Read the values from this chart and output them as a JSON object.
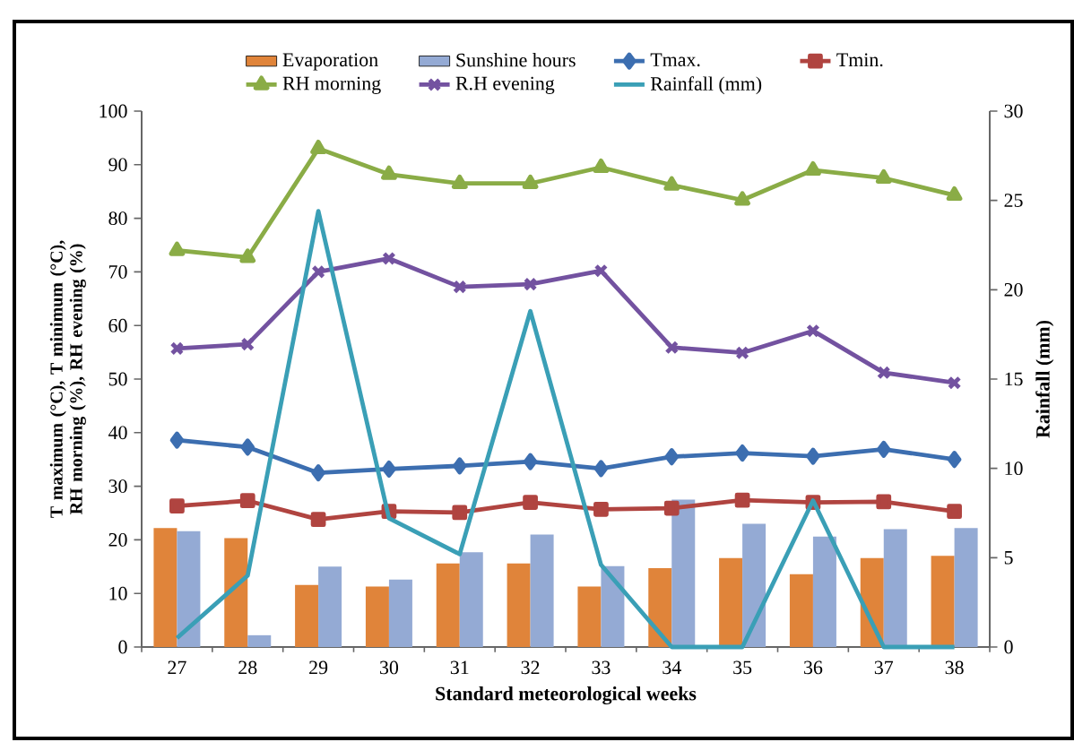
{
  "chart_data": {
    "type": "bar",
    "xlabel": "Standard meteorological weeks",
    "ylabel": "T maximum (°C), T minimum (°C), RH morning (%), RH evening (%)",
    "y2label": "Rainfall (mm)",
    "categories": [
      "27",
      "28",
      "29",
      "30",
      "31",
      "32",
      "33",
      "34",
      "35",
      "36",
      "37",
      "38"
    ],
    "series": [
      {
        "name": "Evaporation",
        "color": "#e0843a",
        "values": [
          22.2,
          20.3,
          11.6,
          11.3,
          15.6,
          15.6,
          11.3,
          14.7,
          16.6,
          13.6,
          16.6,
          17.0
        ]
      },
      {
        "name": "Sunshine hours",
        "color": "#94aad4",
        "values": [
          21.6,
          2.2,
          15.0,
          12.6,
          17.7,
          21.0,
          15.1,
          27.5,
          23.0,
          20.6,
          22.0,
          22.2
        ]
      },
      {
        "name": "Tmax.",
        "type": "line",
        "marker": "diamond",
        "color": "#3c6eb0",
        "values": [
          38.6,
          37.3,
          32.5,
          33.2,
          33.8,
          34.6,
          33.3,
          35.5,
          36.2,
          35.6,
          36.9,
          35.0
        ]
      },
      {
        "name": "Tmin.",
        "type": "line",
        "marker": "square",
        "color": "#b04440",
        "values": [
          26.3,
          27.3,
          23.8,
          25.3,
          25.1,
          27.0,
          25.7,
          25.9,
          27.4,
          27.0,
          27.1,
          25.3
        ]
      },
      {
        "name": "RH morning",
        "type": "line",
        "marker": "triangle",
        "color": "#8aac46",
        "values": [
          74.0,
          72.7,
          93.0,
          88.2,
          86.5,
          86.5,
          89.5,
          86.2,
          83.4,
          89.0,
          87.5,
          84.3
        ]
      },
      {
        "name": "R.H evening",
        "type": "line",
        "marker": "cross",
        "color": "#7352a0",
        "values": [
          55.7,
          56.5,
          70.0,
          72.5,
          67.2,
          67.7,
          70.2,
          55.9,
          54.9,
          59.0,
          51.2,
          49.3
        ]
      },
      {
        "name": "Rainfall (mm)",
        "type": "line",
        "marker": "none",
        "axis": "y2",
        "color": "#3a9fb6",
        "values": [
          0.5,
          4.0,
          24.4,
          7.2,
          5.2,
          18.8,
          4.6,
          0,
          0,
          8.2,
          0,
          0
        ]
      }
    ],
    "ylim": [
      0,
      100
    ],
    "yticks": [
      0,
      10,
      20,
      30,
      40,
      50,
      60,
      70,
      80,
      90,
      100
    ],
    "y2lim": [
      0,
      30
    ],
    "y2ticks": [
      0,
      5,
      10,
      15,
      20,
      25,
      30
    ],
    "legend": "top",
    "grid": false
  }
}
